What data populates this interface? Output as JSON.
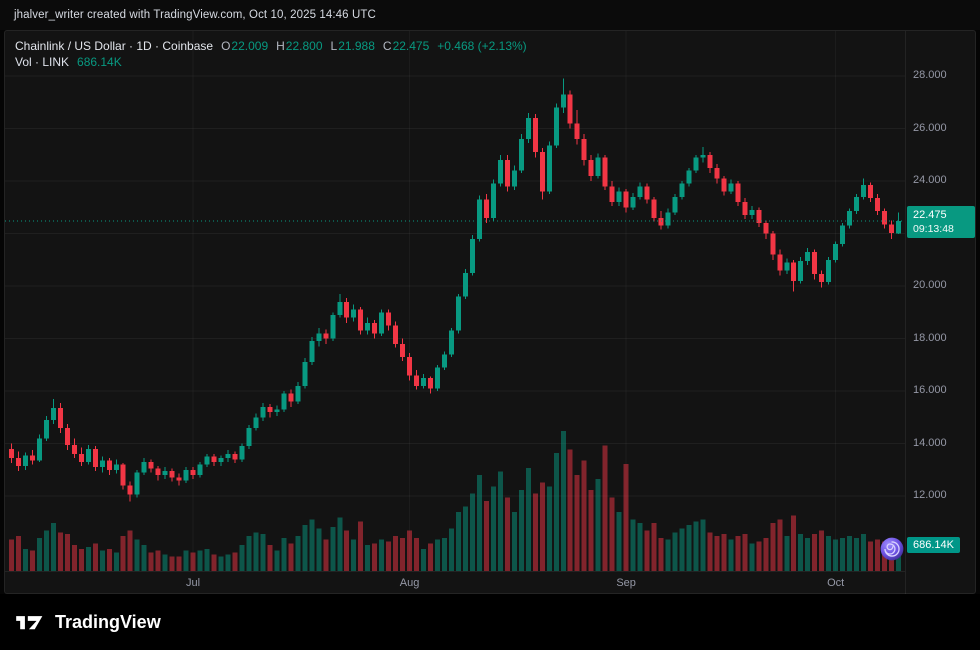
{
  "top_bar": {
    "attribution": "jhalver_writer created with TradingView.com, Oct 10, 2025 14:46 UTC"
  },
  "legend": {
    "symbol_title": "Chainlink / US Dollar · 1D · Coinbase",
    "ohlc": {
      "o_label": "O",
      "o": "22.009",
      "h_label": "H",
      "h": "22.800",
      "l_label": "L",
      "l": "21.988",
      "c_label": "C",
      "c": "22.475",
      "change": "+0.468 (+2.13%)"
    },
    "volume_label": "Vol · LINK",
    "volume_value": "686.14K"
  },
  "price_scale": {
    "labels": [
      "28.000",
      "26.000",
      "24.000",
      "20.000",
      "18.000",
      "16.000",
      "14.000",
      "12.000"
    ]
  },
  "time_scale": {
    "labels": [
      "Jul",
      "Aug",
      "Sep",
      "Oct"
    ]
  },
  "price_badge": {
    "price": "22.475",
    "countdown": "09:13:48"
  },
  "volume_badge": {
    "value": "686.14K"
  },
  "footer": {
    "brand": "TradingView"
  },
  "colors": {
    "up": "#089981",
    "down": "#f23645",
    "price_badge_bg": "#089981",
    "volume_badge_bg": "#009688",
    "axis_text": "#9598a6",
    "grid": "rgba(255,255,255,0.05)",
    "panel_bg": "#131313",
    "sticker_purple": "#7c5cff"
  },
  "chart_data": {
    "type": "candlestick",
    "title": "Chainlink / US Dollar",
    "exchange": "Coinbase",
    "interval": "1D",
    "last": {
      "open": 22.009,
      "high": 22.8,
      "low": 21.988,
      "close": 22.475,
      "change": 0.468,
      "change_pct": 2.13,
      "volume_label": "686.14K"
    },
    "y_axis": {
      "min": 11.5,
      "max": 28.6,
      "gridlines": [
        12,
        14,
        16,
        18,
        20,
        22,
        24,
        26,
        28
      ]
    },
    "x_axis": {
      "month_labels": [
        "Jul",
        "Aug",
        "Sep",
        "Oct"
      ]
    },
    "fields": [
      "date",
      "open",
      "high",
      "low",
      "close",
      "volume_millions"
    ],
    "candles": [
      [
        "2025-06-05",
        13.8,
        14.0,
        13.25,
        13.45,
        0.85
      ],
      [
        "2025-06-06",
        13.45,
        13.7,
        12.95,
        13.15,
        0.95
      ],
      [
        "2025-06-07",
        13.15,
        13.65,
        13.0,
        13.55,
        0.6
      ],
      [
        "2025-06-08",
        13.55,
        13.75,
        13.2,
        13.35,
        0.55
      ],
      [
        "2025-06-09",
        13.35,
        14.35,
        13.3,
        14.2,
        0.9
      ],
      [
        "2025-06-10",
        14.2,
        15.05,
        14.1,
        14.9,
        1.1
      ],
      [
        "2025-06-11",
        14.9,
        15.7,
        14.75,
        15.35,
        1.3
      ],
      [
        "2025-06-12",
        15.35,
        15.55,
        14.4,
        14.6,
        1.05
      ],
      [
        "2025-06-13",
        14.6,
        14.75,
        13.75,
        13.95,
        1.0
      ],
      [
        "2025-06-14",
        13.95,
        14.2,
        13.45,
        13.6,
        0.7
      ],
      [
        "2025-06-15",
        13.6,
        13.85,
        13.15,
        13.3,
        0.6
      ],
      [
        "2025-06-16",
        13.3,
        13.95,
        13.2,
        13.8,
        0.65
      ],
      [
        "2025-06-17",
        13.8,
        13.9,
        12.95,
        13.1,
        0.75
      ],
      [
        "2025-06-18",
        13.1,
        13.5,
        12.9,
        13.35,
        0.55
      ],
      [
        "2025-06-19",
        13.35,
        13.45,
        12.8,
        13.0,
        0.6
      ],
      [
        "2025-06-20",
        13.0,
        13.4,
        12.85,
        13.2,
        0.5
      ],
      [
        "2025-06-21",
        13.2,
        13.25,
        12.25,
        12.4,
        0.95
      ],
      [
        "2025-06-22",
        12.4,
        12.55,
        11.8,
        12.05,
        1.1
      ],
      [
        "2025-06-23",
        12.05,
        13.0,
        11.95,
        12.9,
        0.85
      ],
      [
        "2025-06-24",
        12.9,
        13.45,
        12.8,
        13.3,
        0.7
      ],
      [
        "2025-06-25",
        13.3,
        13.4,
        12.9,
        13.05,
        0.5
      ],
      [
        "2025-06-26",
        13.05,
        13.15,
        12.6,
        12.8,
        0.55
      ],
      [
        "2025-06-27",
        12.8,
        13.1,
        12.65,
        12.95,
        0.45
      ],
      [
        "2025-06-28",
        12.95,
        13.05,
        12.55,
        12.7,
        0.4
      ],
      [
        "2025-06-29",
        12.7,
        12.85,
        12.4,
        12.6,
        0.4
      ],
      [
        "2025-06-30",
        12.6,
        13.1,
        12.5,
        13.0,
        0.55
      ],
      [
        "2025-07-01",
        13.0,
        13.1,
        12.65,
        12.8,
        0.5
      ],
      [
        "2025-07-02",
        12.8,
        13.3,
        12.7,
        13.2,
        0.55
      ],
      [
        "2025-07-03",
        13.2,
        13.6,
        13.1,
        13.5,
        0.6
      ],
      [
        "2025-07-04",
        13.5,
        13.6,
        13.15,
        13.3,
        0.45
      ],
      [
        "2025-07-05",
        13.3,
        13.55,
        13.15,
        13.45,
        0.4
      ],
      [
        "2025-07-06",
        13.45,
        13.75,
        13.3,
        13.6,
        0.45
      ],
      [
        "2025-07-07",
        13.6,
        13.7,
        13.25,
        13.4,
        0.5
      ],
      [
        "2025-07-08",
        13.4,
        14.0,
        13.3,
        13.9,
        0.7
      ],
      [
        "2025-07-09",
        13.9,
        14.7,
        13.8,
        14.6,
        0.95
      ],
      [
        "2025-07-10",
        14.6,
        15.15,
        14.5,
        15.0,
        1.05
      ],
      [
        "2025-07-11",
        15.0,
        15.55,
        14.85,
        15.4,
        1.0
      ],
      [
        "2025-07-12",
        15.4,
        15.5,
        15.0,
        15.2,
        0.7
      ],
      [
        "2025-07-13",
        15.2,
        15.45,
        15.05,
        15.3,
        0.55
      ],
      [
        "2025-07-14",
        15.3,
        16.0,
        15.2,
        15.9,
        0.9
      ],
      [
        "2025-07-15",
        15.9,
        16.05,
        15.4,
        15.6,
        0.75
      ],
      [
        "2025-07-16",
        15.6,
        16.35,
        15.5,
        16.2,
        0.95
      ],
      [
        "2025-07-17",
        16.2,
        17.25,
        16.1,
        17.1,
        1.25
      ],
      [
        "2025-07-18",
        17.1,
        18.05,
        17.0,
        17.9,
        1.4
      ],
      [
        "2025-07-19",
        17.9,
        18.4,
        17.7,
        18.2,
        1.15
      ],
      [
        "2025-07-20",
        18.2,
        18.35,
        17.8,
        18.0,
        0.85
      ],
      [
        "2025-07-21",
        18.0,
        19.0,
        17.9,
        18.9,
        1.2
      ],
      [
        "2025-07-22",
        18.9,
        19.7,
        18.8,
        19.4,
        1.45
      ],
      [
        "2025-07-23",
        19.4,
        19.55,
        18.6,
        18.8,
        1.1
      ],
      [
        "2025-07-24",
        18.8,
        19.3,
        18.65,
        19.1,
        0.85
      ],
      [
        "2025-07-25",
        19.1,
        19.2,
        18.15,
        18.3,
        1.35
      ],
      [
        "2025-07-26",
        18.3,
        18.8,
        18.15,
        18.6,
        0.7
      ],
      [
        "2025-07-27",
        18.6,
        18.7,
        18.0,
        18.2,
        0.75
      ],
      [
        "2025-07-28",
        18.2,
        19.1,
        18.1,
        19.0,
        0.85
      ],
      [
        "2025-07-29",
        19.0,
        19.1,
        18.3,
        18.5,
        0.8
      ],
      [
        "2025-07-30",
        18.5,
        18.65,
        17.65,
        17.8,
        0.95
      ],
      [
        "2025-07-31",
        17.8,
        18.0,
        17.15,
        17.3,
        0.9
      ],
      [
        "2025-08-01",
        17.3,
        17.45,
        16.4,
        16.6,
        1.1
      ],
      [
        "2025-08-02",
        16.6,
        16.8,
        16.05,
        16.2,
        0.9
      ],
      [
        "2025-08-03",
        16.2,
        16.65,
        16.1,
        16.5,
        0.6
      ],
      [
        "2025-08-04",
        16.5,
        16.55,
        15.9,
        16.1,
        0.75
      ],
      [
        "2025-08-05",
        16.1,
        17.0,
        16.0,
        16.9,
        0.85
      ],
      [
        "2025-08-06",
        16.9,
        17.5,
        16.8,
        17.4,
        0.9
      ],
      [
        "2025-08-07",
        17.4,
        18.4,
        17.3,
        18.3,
        1.15
      ],
      [
        "2025-08-08",
        18.3,
        19.7,
        18.2,
        19.6,
        1.6
      ],
      [
        "2025-08-09",
        19.6,
        20.65,
        19.5,
        20.5,
        1.75
      ],
      [
        "2025-08-10",
        20.5,
        21.95,
        20.4,
        21.8,
        2.1
      ],
      [
        "2025-08-11",
        21.8,
        23.45,
        21.7,
        23.3,
        2.6
      ],
      [
        "2025-08-12",
        23.3,
        23.5,
        22.4,
        22.6,
        1.9
      ],
      [
        "2025-08-13",
        22.6,
        24.05,
        22.5,
        23.9,
        2.3
      ],
      [
        "2025-08-14",
        23.9,
        25.0,
        23.8,
        24.8,
        2.7
      ],
      [
        "2025-08-15",
        24.8,
        25.0,
        23.6,
        23.8,
        2.0
      ],
      [
        "2025-08-16",
        23.8,
        24.6,
        23.65,
        24.4,
        1.6
      ],
      [
        "2025-08-17",
        24.4,
        25.8,
        24.3,
        25.6,
        2.2
      ],
      [
        "2025-08-18",
        25.6,
        26.6,
        25.45,
        26.4,
        2.8
      ],
      [
        "2025-08-19",
        26.4,
        26.55,
        24.9,
        25.1,
        2.1
      ],
      [
        "2025-08-20",
        25.1,
        25.25,
        23.3,
        23.6,
        2.4
      ],
      [
        "2025-08-21",
        23.6,
        25.5,
        23.5,
        25.35,
        2.3
      ],
      [
        "2025-08-22",
        25.35,
        26.95,
        25.25,
        26.8,
        3.2
      ],
      [
        "2025-08-23",
        26.8,
        27.9,
        26.6,
        27.3,
        3.8
      ],
      [
        "2025-08-24",
        27.3,
        27.45,
        26.0,
        26.2,
        3.3
      ],
      [
        "2025-08-25",
        26.2,
        26.7,
        25.4,
        25.6,
        2.6
      ],
      [
        "2025-08-26",
        25.6,
        25.8,
        24.6,
        24.8,
        3.0
      ],
      [
        "2025-08-27",
        24.8,
        25.0,
        24.0,
        24.2,
        2.2
      ],
      [
        "2025-08-28",
        24.2,
        25.05,
        24.1,
        24.9,
        2.5
      ],
      [
        "2025-08-29",
        24.9,
        25.0,
        23.65,
        23.8,
        3.4
      ],
      [
        "2025-08-30",
        23.8,
        24.0,
        23.05,
        23.2,
        2.0
      ],
      [
        "2025-08-31",
        23.2,
        23.75,
        23.05,
        23.6,
        1.6
      ],
      [
        "2025-09-01",
        23.6,
        23.7,
        22.8,
        23.0,
        2.9
      ],
      [
        "2025-09-02",
        23.0,
        23.55,
        22.9,
        23.4,
        1.4
      ],
      [
        "2025-09-03",
        23.4,
        23.95,
        23.3,
        23.8,
        1.3
      ],
      [
        "2025-09-04",
        23.8,
        23.9,
        23.15,
        23.3,
        1.1
      ],
      [
        "2025-09-05",
        23.3,
        23.4,
        22.45,
        22.6,
        1.3
      ],
      [
        "2025-09-06",
        22.6,
        22.85,
        22.15,
        22.3,
        0.9
      ],
      [
        "2025-09-07",
        22.3,
        22.95,
        22.2,
        22.8,
        0.85
      ],
      [
        "2025-09-08",
        22.8,
        23.5,
        22.7,
        23.4,
        1.05
      ],
      [
        "2025-09-09",
        23.4,
        24.0,
        23.3,
        23.9,
        1.15
      ],
      [
        "2025-09-10",
        23.9,
        24.5,
        23.8,
        24.4,
        1.25
      ],
      [
        "2025-09-11",
        24.4,
        25.0,
        24.3,
        24.9,
        1.35
      ],
      [
        "2025-09-12",
        24.9,
        25.3,
        24.7,
        25.0,
        1.4
      ],
      [
        "2025-09-13",
        25.0,
        25.1,
        24.3,
        24.5,
        1.05
      ],
      [
        "2025-09-14",
        24.5,
        24.65,
        23.9,
        24.1,
        0.95
      ],
      [
        "2025-09-15",
        24.1,
        24.2,
        23.45,
        23.6,
        1.0
      ],
      [
        "2025-09-16",
        23.6,
        24.05,
        23.5,
        23.9,
        0.85
      ],
      [
        "2025-09-17",
        23.9,
        24.0,
        23.05,
        23.2,
        0.95
      ],
      [
        "2025-09-18",
        23.2,
        23.35,
        22.55,
        22.7,
        1.0
      ],
      [
        "2025-09-19",
        22.7,
        23.05,
        22.55,
        22.9,
        0.75
      ],
      [
        "2025-09-20",
        22.9,
        23.0,
        22.25,
        22.4,
        0.8
      ],
      [
        "2025-09-21",
        22.4,
        22.5,
        21.8,
        22.0,
        0.9
      ],
      [
        "2025-09-22",
        22.0,
        22.1,
        21.0,
        21.2,
        1.3
      ],
      [
        "2025-09-23",
        21.2,
        21.4,
        20.4,
        20.6,
        1.4
      ],
      [
        "2025-09-24",
        20.6,
        21.05,
        20.45,
        20.9,
        0.95
      ],
      [
        "2025-09-25",
        20.9,
        21.0,
        19.8,
        20.2,
        1.5
      ],
      [
        "2025-09-26",
        20.2,
        21.1,
        20.1,
        20.95,
        1.0
      ],
      [
        "2025-09-27",
        20.95,
        21.45,
        20.8,
        21.3,
        0.9
      ],
      [
        "2025-09-28",
        21.3,
        21.4,
        20.25,
        20.45,
        1.0
      ],
      [
        "2025-09-29",
        20.45,
        20.6,
        19.95,
        20.15,
        1.1
      ],
      [
        "2025-09-30",
        20.15,
        21.1,
        20.05,
        21.0,
        0.95
      ],
      [
        "2025-10-01",
        21.0,
        21.7,
        20.9,
        21.6,
        0.85
      ],
      [
        "2025-10-02",
        21.6,
        22.4,
        21.5,
        22.3,
        0.9
      ],
      [
        "2025-10-03",
        22.3,
        22.95,
        22.2,
        22.85,
        0.95
      ],
      [
        "2025-10-04",
        22.85,
        23.5,
        22.75,
        23.4,
        0.9
      ],
      [
        "2025-10-05",
        23.4,
        24.1,
        23.3,
        23.85,
        1.0
      ],
      [
        "2025-10-06",
        23.85,
        23.95,
        23.2,
        23.35,
        0.8
      ],
      [
        "2025-10-07",
        23.35,
        23.5,
        22.7,
        22.85,
        0.85
      ],
      [
        "2025-10-08",
        22.85,
        22.95,
        22.2,
        22.35,
        0.8
      ],
      [
        "2025-10-09",
        22.35,
        22.5,
        21.8,
        22.01,
        0.75
      ],
      [
        "2025-10-10",
        22.009,
        22.8,
        21.988,
        22.475,
        0.686
      ]
    ]
  }
}
